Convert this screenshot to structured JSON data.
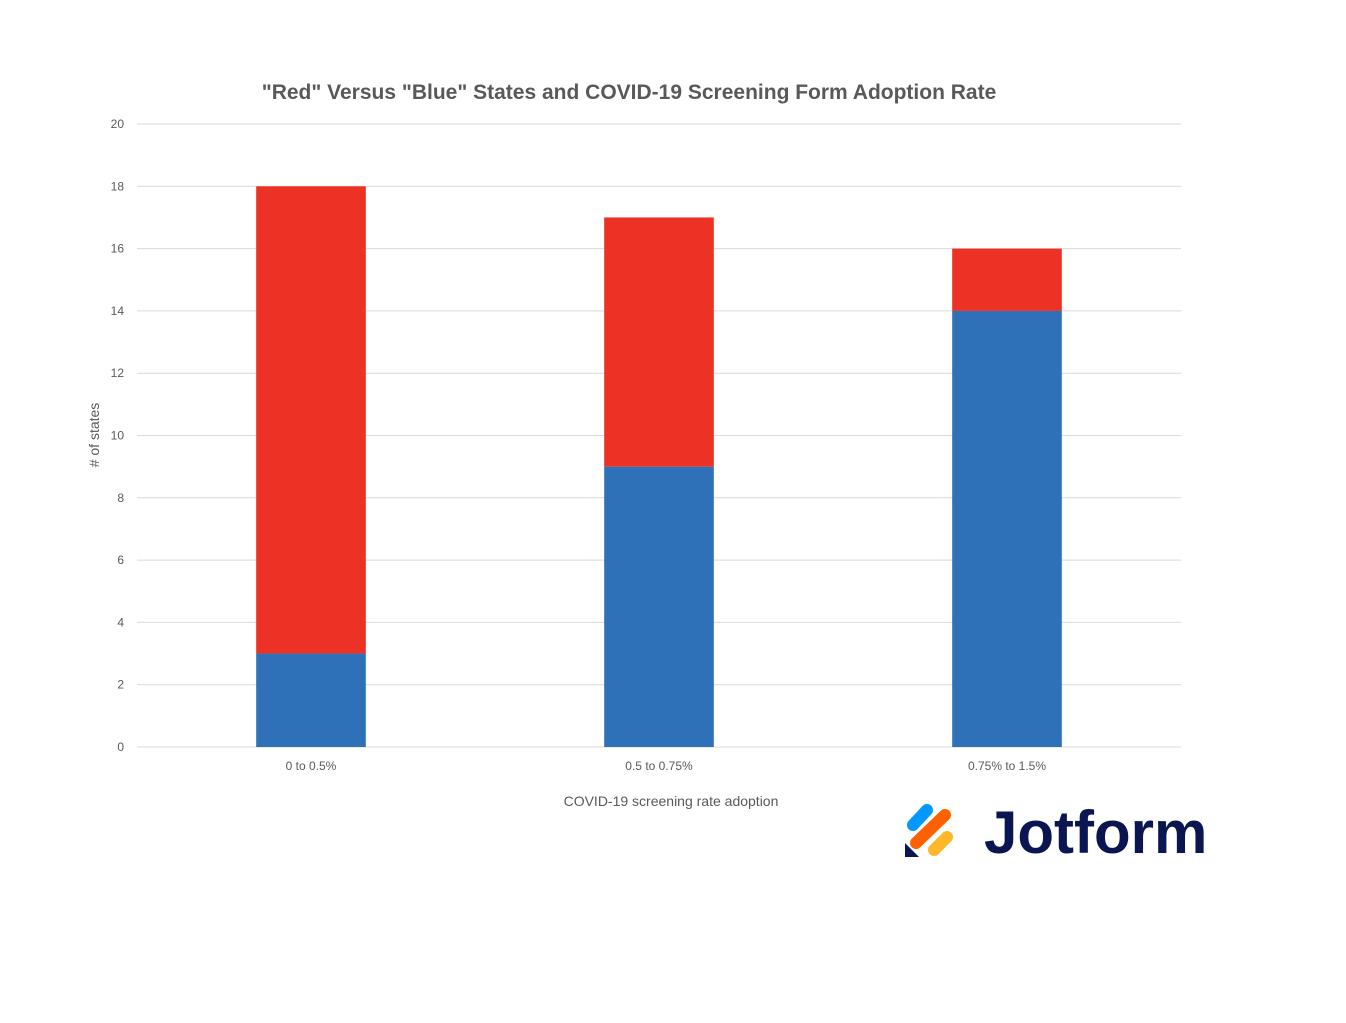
{
  "chart_data": {
    "type": "bar",
    "stacked": true,
    "title": "\"Red\" Versus \"Blue\" States and COVID-19 Screening Form Adoption Rate",
    "xlabel": "COVID-19 screening rate adoption",
    "ylabel": "# of states",
    "categories": [
      "0 to 0.5%",
      "0.5 to 0.75%",
      "0.75% to 1.5%"
    ],
    "series": [
      {
        "color": "#2e71b8",
        "values": [
          3,
          9,
          14
        ]
      },
      {
        "color": "#ec3224",
        "values": [
          15,
          8,
          2
        ]
      }
    ],
    "ylim": [
      0,
      20
    ],
    "yticks": [
      "0",
      "2",
      "4",
      "6",
      "8",
      "10",
      "12",
      "14",
      "16",
      "18",
      "20"
    ],
    "grid": true
  },
  "logo": {
    "text": "Jotform",
    "icon": "jotform-logo-icon",
    "colors": {
      "blue": "#0099ff",
      "orange": "#ff6100",
      "yellow": "#ffb629",
      "navy": "#0a1551"
    }
  }
}
